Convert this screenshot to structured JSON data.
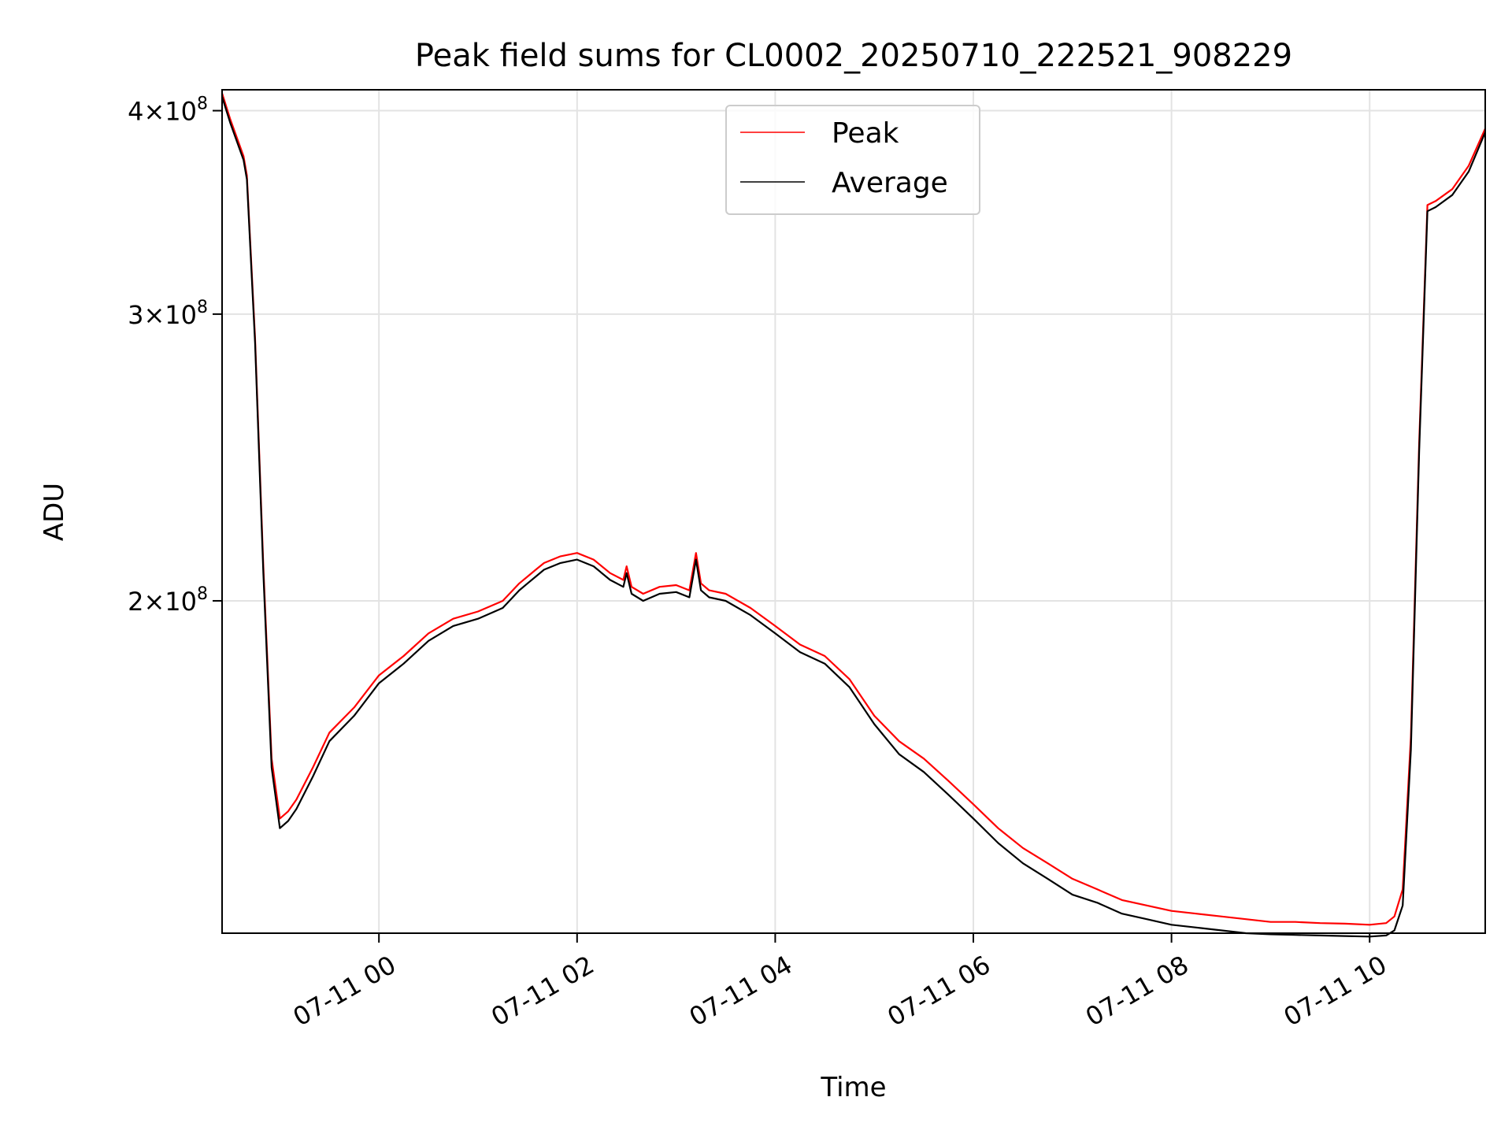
{
  "chart_data": {
    "type": "line",
    "title": "Peak field sums for CL0002_20250710_222521_908229",
    "xlabel": "Time",
    "ylabel": "ADU",
    "yscale": "log",
    "grid": true,
    "legend_position": "upper-center",
    "xlim": [
      "2025-07-10 22:25",
      "2025-07-11 11:10"
    ],
    "ylim": [
      125000000,
      412000000
    ],
    "x_ticks": [
      {
        "value": "2025-07-11 00:00",
        "label": "07-11 00"
      },
      {
        "value": "2025-07-11 02:00",
        "label": "07-11 02"
      },
      {
        "value": "2025-07-11 04:00",
        "label": "07-11 04"
      },
      {
        "value": "2025-07-11 06:00",
        "label": "07-11 06"
      },
      {
        "value": "2025-07-11 08:00",
        "label": "07-11 08"
      },
      {
        "value": "2025-07-11 10:00",
        "label": "07-11 10"
      }
    ],
    "y_ticks": [
      {
        "value": 200000000,
        "mantissa": "2",
        "exponent": "8"
      },
      {
        "value": 300000000,
        "mantissa": "3",
        "exponent": "8"
      },
      {
        "value": 400000000,
        "mantissa": "4",
        "exponent": "8"
      }
    ],
    "series": [
      {
        "name": "Peak",
        "color": "#ff0000",
        "x": [
          "2025-07-10 22:25",
          "2025-07-10 22:30",
          "2025-07-10 22:38",
          "2025-07-10 22:40",
          "2025-07-10 22:45",
          "2025-07-10 22:50",
          "2025-07-10 22:55",
          "2025-07-10 23:00",
          "2025-07-10 23:05",
          "2025-07-10 23:10",
          "2025-07-10 23:20",
          "2025-07-10 23:30",
          "2025-07-10 23:45",
          "2025-07-11 00:00",
          "2025-07-11 00:15",
          "2025-07-11 00:30",
          "2025-07-11 00:45",
          "2025-07-11 01:00",
          "2025-07-11 01:15",
          "2025-07-11 01:25",
          "2025-07-11 01:30",
          "2025-07-11 01:35",
          "2025-07-11 01:40",
          "2025-07-11 01:50",
          "2025-07-11 02:00",
          "2025-07-11 02:10",
          "2025-07-11 02:20",
          "2025-07-11 02:28",
          "2025-07-11 02:30",
          "2025-07-11 02:33",
          "2025-07-11 02:40",
          "2025-07-11 02:50",
          "2025-07-11 03:00",
          "2025-07-11 03:08",
          "2025-07-11 03:12",
          "2025-07-11 03:15",
          "2025-07-11 03:20",
          "2025-07-11 03:30",
          "2025-07-11 03:45",
          "2025-07-11 04:00",
          "2025-07-11 04:15",
          "2025-07-11 04:30",
          "2025-07-11 04:45",
          "2025-07-11 05:00",
          "2025-07-11 05:15",
          "2025-07-11 05:30",
          "2025-07-11 05:45",
          "2025-07-11 06:00",
          "2025-07-11 06:15",
          "2025-07-11 06:30",
          "2025-07-11 06:45",
          "2025-07-11 07:00",
          "2025-07-11 07:15",
          "2025-07-11 07:30",
          "2025-07-11 07:45",
          "2025-07-11 08:00",
          "2025-07-11 08:15",
          "2025-07-11 08:30",
          "2025-07-11 08:45",
          "2025-07-11 09:00",
          "2025-07-11 09:15",
          "2025-07-11 09:30",
          "2025-07-11 09:45",
          "2025-07-11 10:00",
          "2025-07-11 10:10",
          "2025-07-11 10:15",
          "2025-07-11 10:20",
          "2025-07-11 10:25",
          "2025-07-11 10:30",
          "2025-07-11 10:35",
          "2025-07-11 10:40",
          "2025-07-11 10:50",
          "2025-07-11 11:00",
          "2025-07-11 11:10"
        ],
        "values": [
          410000000,
          395000000,
          375000000,
          365000000,
          290000000,
          210000000,
          160000000,
          147000000,
          148500000,
          151000000,
          158000000,
          166000000,
          172000000,
          180000000,
          185000000,
          191000000,
          195000000,
          197000000,
          200000000,
          205000000,
          207000000,
          209000000,
          211000000,
          213000000,
          214000000,
          212000000,
          208000000,
          206000000,
          210000000,
          204000000,
          202000000,
          204000000,
          204500000,
          203000000,
          214000000,
          205000000,
          203000000,
          202000000,
          198000000,
          193000000,
          188000000,
          185000000,
          179000000,
          170000000,
          164000000,
          160000000,
          155000000,
          150000000,
          145000000,
          141000000,
          138000000,
          135000000,
          133000000,
          131000000,
          130000000,
          129000000,
          128500000,
          128000000,
          127500000,
          127000000,
          127000000,
          126800000,
          126700000,
          126500000,
          126800000,
          128000000,
          133000000,
          165000000,
          250000000,
          350000000,
          352000000,
          358000000,
          370000000,
          390000000
        ]
      },
      {
        "name": "Average",
        "color": "#000000",
        "x": [
          "2025-07-10 22:25",
          "2025-07-10 22:30",
          "2025-07-10 22:38",
          "2025-07-10 22:40",
          "2025-07-10 22:45",
          "2025-07-10 22:50",
          "2025-07-10 22:55",
          "2025-07-10 23:00",
          "2025-07-10 23:05",
          "2025-07-10 23:10",
          "2025-07-10 23:20",
          "2025-07-10 23:30",
          "2025-07-10 23:45",
          "2025-07-11 00:00",
          "2025-07-11 00:15",
          "2025-07-11 00:30",
          "2025-07-11 00:45",
          "2025-07-11 01:00",
          "2025-07-11 01:15",
          "2025-07-11 01:25",
          "2025-07-11 01:30",
          "2025-07-11 01:35",
          "2025-07-11 01:40",
          "2025-07-11 01:50",
          "2025-07-11 02:00",
          "2025-07-11 02:10",
          "2025-07-11 02:20",
          "2025-07-11 02:28",
          "2025-07-11 02:30",
          "2025-07-11 02:33",
          "2025-07-11 02:40",
          "2025-07-11 02:50",
          "2025-07-11 03:00",
          "2025-07-11 03:08",
          "2025-07-11 03:12",
          "2025-07-11 03:15",
          "2025-07-11 03:20",
          "2025-07-11 03:30",
          "2025-07-11 03:45",
          "2025-07-11 04:00",
          "2025-07-11 04:15",
          "2025-07-11 04:30",
          "2025-07-11 04:45",
          "2025-07-11 05:00",
          "2025-07-11 05:15",
          "2025-07-11 05:30",
          "2025-07-11 05:45",
          "2025-07-11 06:00",
          "2025-07-11 06:15",
          "2025-07-11 06:30",
          "2025-07-11 06:45",
          "2025-07-11 07:00",
          "2025-07-11 07:15",
          "2025-07-11 07:30",
          "2025-07-11 07:45",
          "2025-07-11 08:00",
          "2025-07-11 08:15",
          "2025-07-11 08:30",
          "2025-07-11 08:45",
          "2025-07-11 09:00",
          "2025-07-11 09:15",
          "2025-07-11 09:30",
          "2025-07-11 09:45",
          "2025-07-11 10:00",
          "2025-07-11 10:10",
          "2025-07-11 10:15",
          "2025-07-11 10:20",
          "2025-07-11 10:25",
          "2025-07-11 10:30",
          "2025-07-11 10:35",
          "2025-07-11 10:40",
          "2025-07-11 10:50",
          "2025-07-11 11:00",
          "2025-07-11 11:10"
        ],
        "values": [
          408000000,
          393000000,
          373000000,
          363000000,
          288000000,
          208000000,
          158000000,
          145000000,
          146500000,
          149000000,
          156000000,
          164000000,
          170000000,
          178000000,
          183000000,
          189000000,
          193000000,
          195000000,
          198000000,
          203000000,
          205000000,
          207000000,
          209000000,
          211000000,
          212000000,
          210000000,
          206000000,
          204000000,
          208000000,
          202000000,
          200000000,
          202000000,
          202500000,
          201000000,
          212000000,
          203000000,
          201000000,
          200000000,
          196000000,
          191000000,
          186000000,
          183000000,
          177000000,
          168000000,
          161000000,
          157000000,
          152000000,
          147000000,
          142000000,
          138000000,
          135000000,
          132000000,
          130500000,
          128500000,
          127500000,
          126500000,
          126000000,
          125500000,
          125000000,
          124800000,
          124700000,
          124600000,
          124500000,
          124400000,
          124600000,
          125500000,
          130000000,
          162000000,
          247000000,
          347000000,
          349000000,
          355000000,
          367000000,
          388000000
        ]
      }
    ]
  }
}
